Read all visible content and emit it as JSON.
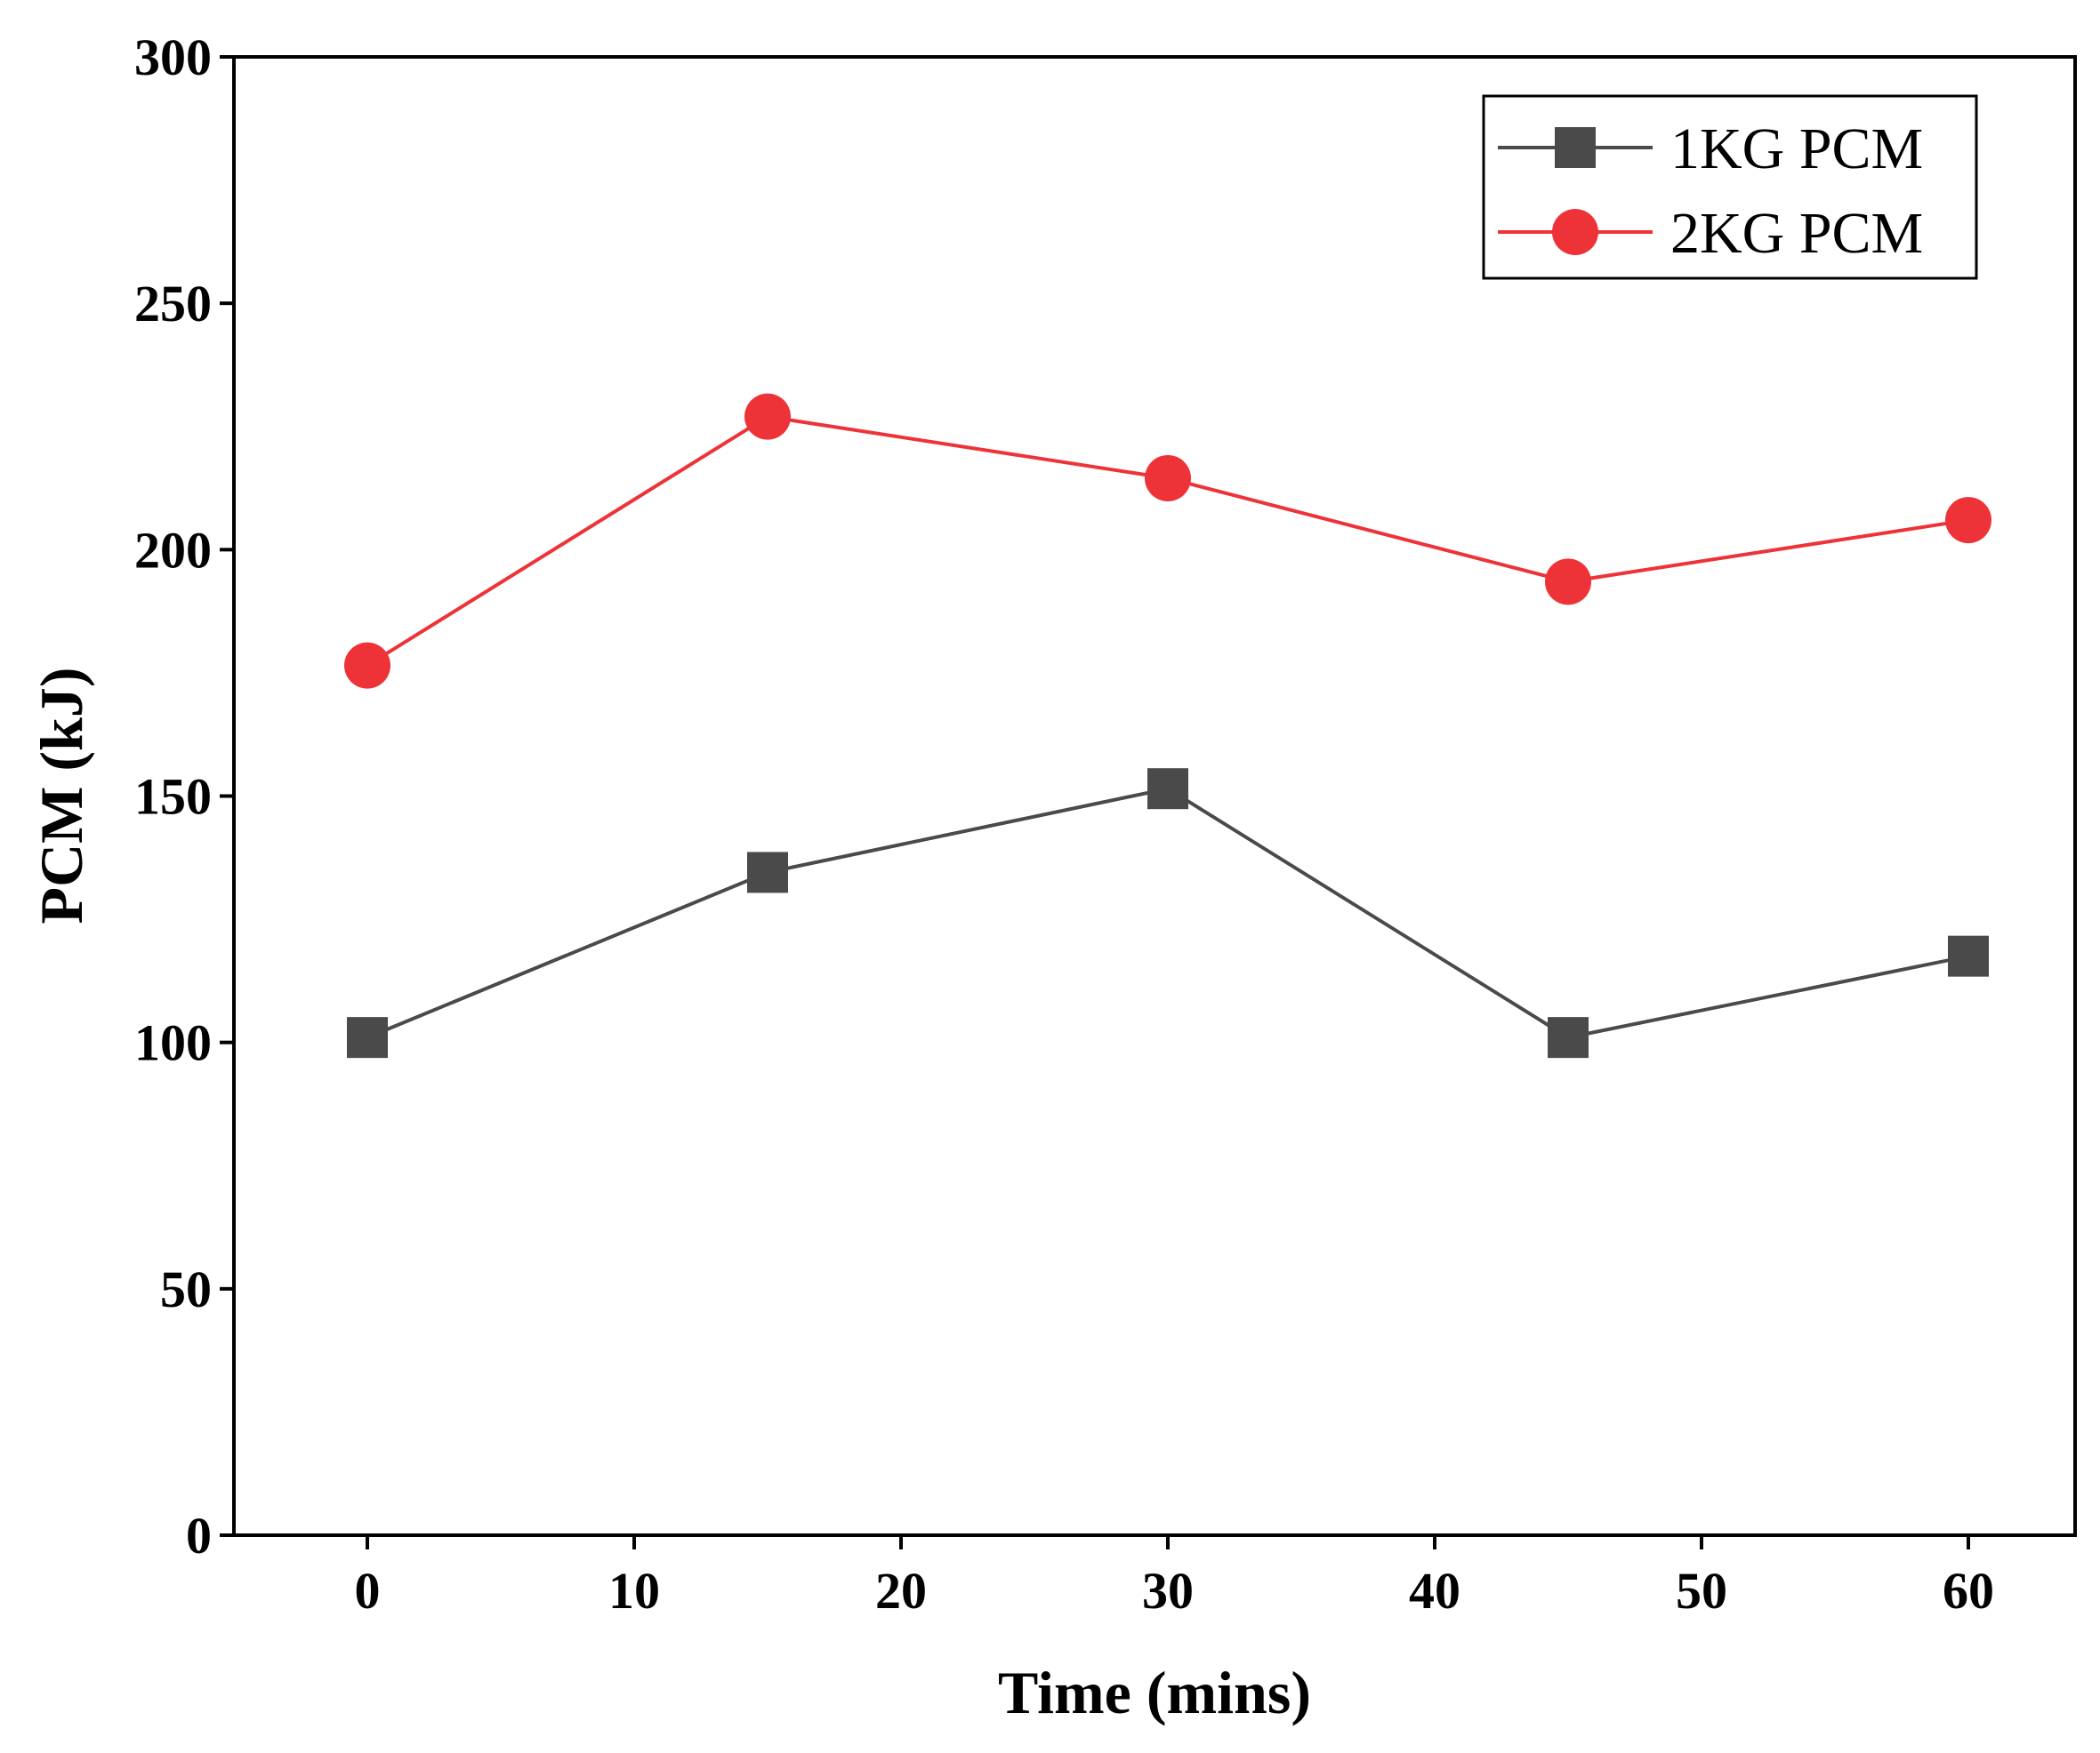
{
  "chart_data": {
    "type": "line",
    "title": "",
    "xlabel": "Time (mins)",
    "ylabel": "PCM (kJ)",
    "xlim": [
      -5,
      64
    ],
    "ylim": [
      0,
      300
    ],
    "xticks": [
      0,
      10,
      20,
      30,
      40,
      50,
      60
    ],
    "yticks": [
      0,
      50,
      100,
      150,
      200,
      250,
      300
    ],
    "x": [
      0,
      15,
      30,
      45,
      60
    ],
    "grid": false,
    "legend_position": "top-right",
    "series": [
      {
        "name": "1KG PCM",
        "marker": "square",
        "color": "#4a4a4a",
        "values": [
          101,
          134.5,
          151.5,
          101,
          117.5
        ]
      },
      {
        "name": "2KG PCM",
        "marker": "circle",
        "color": "#ee3338",
        "values": [
          176.5,
          227,
          214.5,
          193.5,
          206
        ]
      }
    ]
  }
}
